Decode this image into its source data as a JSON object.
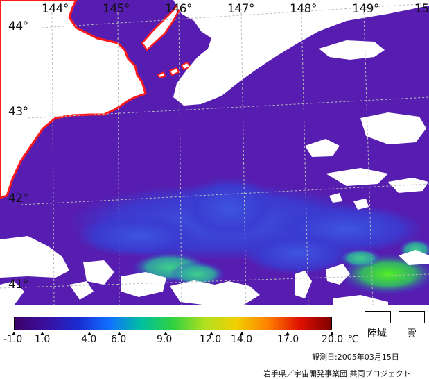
{
  "map": {
    "lon_labels": [
      "144°",
      "145°",
      "146°",
      "147°",
      "148°",
      "149°",
      "15"
    ],
    "lat_labels": [
      "44°",
      "43°",
      "42°",
      "41°"
    ],
    "colors": {
      "sea_purple": "#5a1fb4",
      "sea_blue": "#3a3bd0",
      "warm_green": "#2fc07a",
      "cloud": "#ffffff",
      "coastline": "#ff1a1a",
      "grid": "#bbbbbb"
    }
  },
  "scale": {
    "unit": "℃",
    "gradient": [
      "#3c0068",
      "#3a10a0",
      "#1a2ad0",
      "#1070ff",
      "#00c0a0",
      "#30d040",
      "#b0e020",
      "#f0d000",
      "#ff8000",
      "#e01000",
      "#800000"
    ],
    "tick_labels": [
      "-1.0",
      "1.0",
      "4.0",
      "6.0",
      "9.0",
      "12.0",
      "14.0",
      "17.0",
      "20.0"
    ]
  },
  "legend": {
    "land_label": "陸域",
    "cloud_label": "雲"
  },
  "footer": {
    "observation_date": "観測日:2005年03月15日",
    "credit": "岩手県／宇宙開発事業団 共同プロジェクト"
  }
}
